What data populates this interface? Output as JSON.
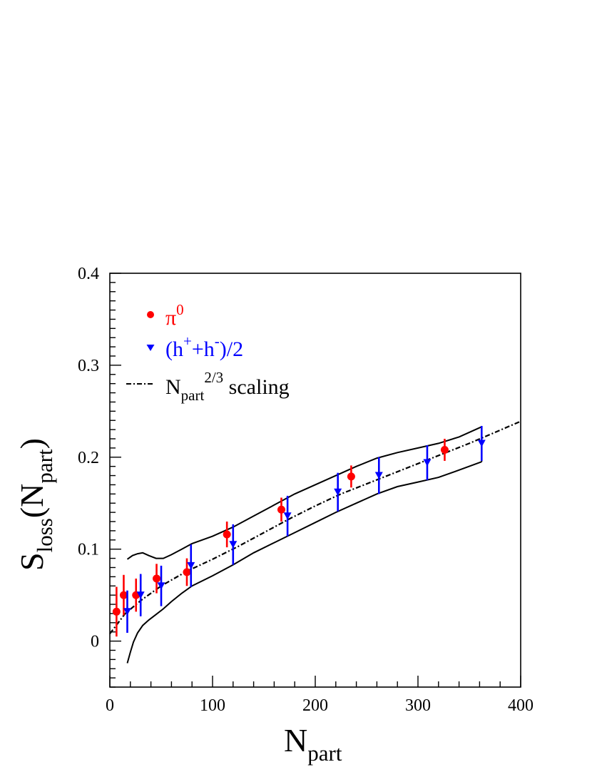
{
  "chart_data": {
    "type": "scatter",
    "xlabel": {
      "main": "N",
      "sub": "part"
    },
    "ylabel": {
      "main": "S",
      "sub1": "loss",
      "mid": "(N",
      "sub2": "part",
      "end": ")"
    },
    "xlim": [
      0,
      400
    ],
    "ylim": [
      -0.05,
      0.4
    ],
    "x_ticks": [
      0,
      100,
      200,
      300,
      400
    ],
    "x_tick_labels": [
      "0",
      "100",
      "200",
      "300",
      "400"
    ],
    "y_ticks": [
      0,
      0.1,
      0.2,
      0.3,
      0.4
    ],
    "y_tick_labels": [
      "0",
      "0.1",
      "0.2",
      "0.3",
      "0.4"
    ],
    "grid": false,
    "legend_position": "top-left",
    "legend": {
      "pi0": {
        "main": "π",
        "sup": "0"
      },
      "hadrons": {
        "p1": "(h",
        "sup1": "+",
        "p2": "+h",
        "sup2": "-",
        "p3": ")/2"
      },
      "scaling": {
        "main": "N",
        "sub": "part",
        "sup": "2/3",
        "tail": " scaling"
      }
    },
    "series": [
      {
        "key": "pi0",
        "color": "#ff0000",
        "marker": "circle",
        "x": [
          6.5,
          13.5,
          25.5,
          45.5,
          75,
          114,
          167,
          235,
          326
        ],
        "y": [
          0.032,
          0.05,
          0.05,
          0.068,
          0.075,
          0.116,
          0.143,
          0.179,
          0.208
        ],
        "err": [
          0.027,
          0.022,
          0.018,
          0.016,
          0.015,
          0.014,
          0.013,
          0.012,
          0.012
        ]
      },
      {
        "key": "hadrons",
        "color": "#0000ff",
        "marker": "triangle-down",
        "x": [
          17,
          30,
          50,
          79,
          120,
          173,
          222,
          262,
          309,
          362
        ],
        "y": [
          0.032,
          0.05,
          0.06,
          0.082,
          0.105,
          0.136,
          0.162,
          0.18,
          0.194,
          0.215
        ],
        "err": [
          0.023,
          0.023,
          0.022,
          0.023,
          0.022,
          0.022,
          0.021,
          0.02,
          0.019,
          0.019
        ]
      }
    ],
    "scaling_curve": {
      "style": "dash-dot",
      "color": "#000000",
      "x": [
        0,
        15,
        30,
        50,
        75,
        100,
        125,
        150,
        175,
        200,
        225,
        250,
        275,
        300,
        325,
        350,
        375,
        400
      ],
      "y": [
        0.008,
        0.03,
        0.044,
        0.06,
        0.076,
        0.089,
        0.103,
        0.118,
        0.133,
        0.147,
        0.16,
        0.171,
        0.182,
        0.193,
        0.204,
        0.215,
        0.227,
        0.239
      ]
    },
    "band": {
      "color": "#000000",
      "upper": {
        "x": [
          17,
          22,
          27,
          32,
          38,
          45,
          52,
          60,
          70,
          80,
          100,
          120,
          140,
          160,
          180,
          200,
          220,
          240,
          260,
          280,
          300,
          320,
          340,
          362
        ],
        "y": [
          0.089,
          0.093,
          0.095,
          0.096,
          0.093,
          0.09,
          0.09,
          0.094,
          0.1,
          0.106,
          0.114,
          0.124,
          0.136,
          0.148,
          0.16,
          0.17,
          0.18,
          0.19,
          0.199,
          0.205,
          0.21,
          0.215,
          0.222,
          0.233
        ]
      },
      "lower": {
        "x": [
          17,
          20,
          23,
          27,
          32,
          38,
          45,
          52,
          60,
          70,
          80,
          100,
          120,
          140,
          160,
          180,
          200,
          220,
          240,
          260,
          280,
          300,
          320,
          340,
          362
        ],
        "y": [
          -0.024,
          -0.012,
          -0.001,
          0.009,
          0.017,
          0.023,
          0.029,
          0.035,
          0.043,
          0.052,
          0.06,
          0.071,
          0.083,
          0.096,
          0.107,
          0.118,
          0.129,
          0.14,
          0.15,
          0.16,
          0.168,
          0.173,
          0.178,
          0.186,
          0.195
        ]
      }
    }
  }
}
